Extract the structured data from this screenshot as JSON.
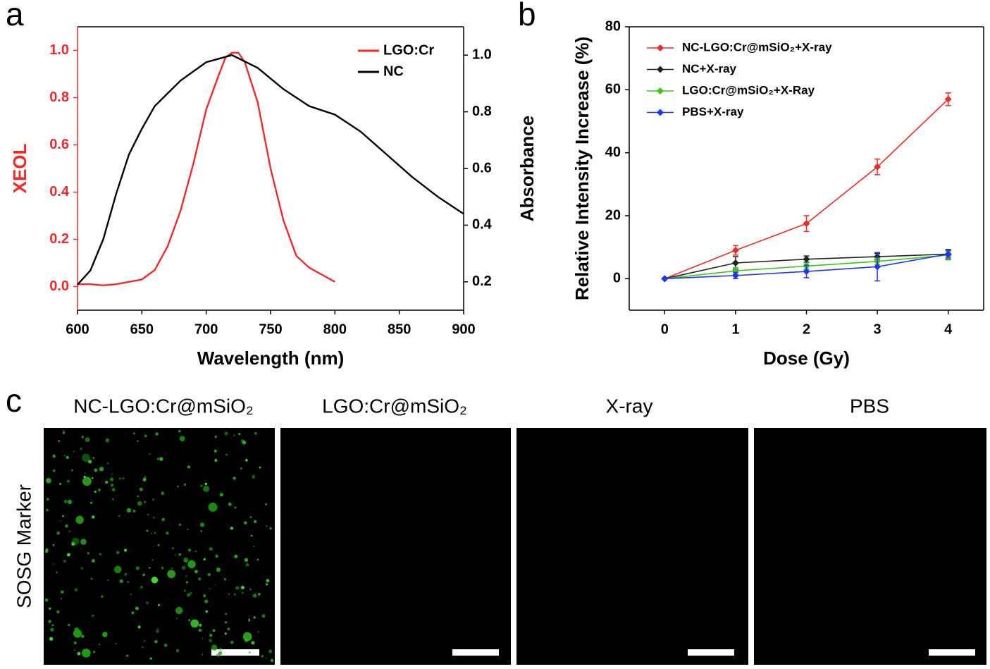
{
  "chart_data": [
    {
      "type": "line",
      "panel_label": "a",
      "x_label": "Wavelength (nm)",
      "y_label": "XEOL",
      "y2_label": "Absorbance",
      "xlim": [
        600,
        900
      ],
      "xticks": [
        600,
        650,
        700,
        750,
        800,
        850,
        900
      ],
      "ylim": [
        -0.1,
        1.1
      ],
      "yticks": [
        {
          "value": 0,
          "label": "0.0"
        },
        0.2,
        0.4,
        0.6,
        0.8,
        {
          "value": 1,
          "label": "1.0"
        }
      ],
      "y2lim": [
        0.1,
        1.1
      ],
      "y2ticks": [
        0.2,
        0.4,
        0.6,
        0.8,
        {
          "value": 1,
          "label": "1.0"
        }
      ],
      "legend": "upper right",
      "series": [
        {
          "name": "LGO:Cr",
          "color": "#ee2a2a",
          "axis": "y",
          "x": [
            600,
            610,
            620,
            630,
            640,
            650,
            655,
            660,
            670,
            680,
            690,
            700,
            710,
            715,
            720,
            725,
            730,
            740,
            750,
            760,
            770,
            780,
            790,
            800
          ],
          "values": [
            0.01,
            0.01,
            0.005,
            0.01,
            0.02,
            0.03,
            0.05,
            0.07,
            0.17,
            0.32,
            0.52,
            0.75,
            0.9,
            0.97,
            0.99,
            0.99,
            0.95,
            0.78,
            0.5,
            0.28,
            0.13,
            0.08,
            0.05,
            0.02
          ]
        },
        {
          "name": "NC",
          "color": "#000000",
          "axis": "y2",
          "x": [
            600,
            610,
            620,
            630,
            640,
            650,
            660,
            680,
            700,
            720,
            740,
            760,
            780,
            800,
            820,
            840,
            860,
            880,
            900
          ],
          "values": [
            0.19,
            0.24,
            0.35,
            0.51,
            0.65,
            0.74,
            0.82,
            0.91,
            0.975,
            1.0,
            0.955,
            0.88,
            0.82,
            0.79,
            0.73,
            0.65,
            0.57,
            0.5,
            0.44
          ]
        }
      ]
    },
    {
      "type": "line",
      "panel_label": "b",
      "x_label": "Dose (Gy)",
      "y_label": "Relative Intensity Increase (%)",
      "xlim": [
        -0.5,
        4.5
      ],
      "xticks": [
        0,
        1,
        2,
        3,
        4
      ],
      "x": [
        0,
        1,
        2,
        3,
        4
      ],
      "ylim": [
        -10,
        80
      ],
      "yticks": [
        0,
        20,
        40,
        60,
        80
      ],
      "legend": "upper left",
      "series": [
        {
          "name": "NC-LGO:Cr@mSiO₂+X-ray",
          "color": "#ee2a2a",
          "values": [
            0,
            9,
            17.5,
            35.5,
            57
          ],
          "errors": [
            0,
            1.5,
            2.5,
            2.5,
            2
          ]
        },
        {
          "name": "NC+X-ray",
          "color": "#222222",
          "values": [
            0,
            5,
            6.2,
            7,
            7.8
          ],
          "errors": [
            0,
            2,
            1,
            1,
            1.5
          ]
        },
        {
          "name": "LGO:Cr@mSiO₂+X-Ray",
          "color": "#3fc41a",
          "values": [
            0,
            2.5,
            4,
            5.5,
            7.5
          ],
          "errors": [
            0,
            1,
            1,
            1,
            1.5
          ]
        },
        {
          "name": "PBS+X-ray",
          "color": "#2233ee",
          "values": [
            0,
            1,
            2.3,
            3.8,
            7.8
          ],
          "errors": [
            0,
            1,
            2,
            4.5,
            1
          ]
        }
      ]
    }
  ],
  "panel_c": {
    "label": "c",
    "row_label": "SOSG Marker",
    "columns": [
      "NC-LGO:Cr@mSiO₂",
      "LGO:Cr@mSiO₂",
      "X-ray",
      "PBS"
    ]
  }
}
